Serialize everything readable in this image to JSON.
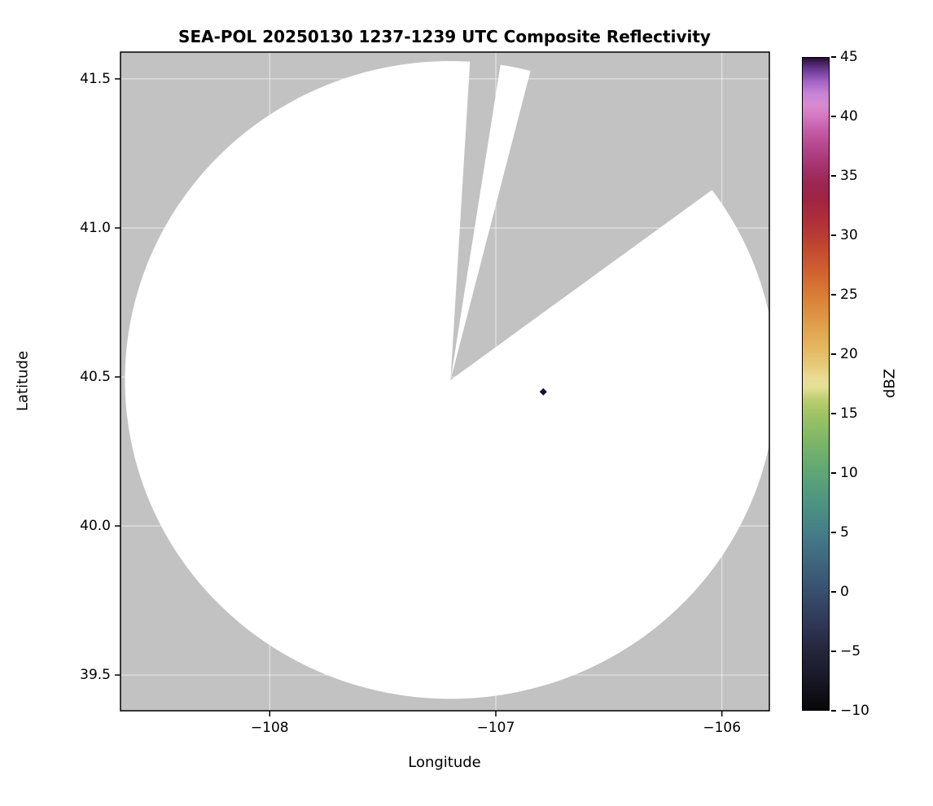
{
  "chart_data": {
    "type": "heatmap",
    "title": "SEA-POL 20250130 1237-1239 UTC Composite Reflectivity",
    "xlabel": "Longitude",
    "ylabel": "Latitude",
    "xlim": [
      -108.66,
      -105.79
    ],
    "ylim": [
      39.38,
      41.59
    ],
    "grid": true,
    "grid_color": "#ffffff",
    "background_color": "#c2c2c2",
    "frame_color": "#000000",
    "xticks": {
      "values": [
        -108,
        -107,
        -106
      ],
      "labels": [
        "−108",
        "−107",
        "−106"
      ]
    },
    "yticks": {
      "values": [
        41.5,
        41.0,
        40.5,
        40.0,
        39.5
      ],
      "labels": [
        "41.5",
        "41.0",
        "40.5",
        "40.0",
        "39.5"
      ]
    },
    "coverage": {
      "description": "white circular radar scan coverage (echo-free) with gray blocked sectors",
      "center_lon": -107.2,
      "center_lat": 40.49,
      "radius_deg": {
        "lon": 1.44,
        "lat": 1.07
      },
      "fill": "#ffffff",
      "blocked_sectors_azimuth_deg": [
        [
          3.5,
          9.0
        ],
        [
          14.5,
          54.0
        ]
      ]
    },
    "echoes": [
      {
        "lon": -106.79,
        "lat": 40.45,
        "dbz": 45
      }
    ],
    "echo_marker_color": "#1a0d2e",
    "colorbar": {
      "label": "dBZ",
      "vmin": -10,
      "vmax": 45,
      "tick_values": [
        45,
        40,
        35,
        30,
        25,
        20,
        15,
        10,
        5,
        0,
        -5,
        -10
      ],
      "tick_labels": [
        "45",
        "40",
        "35",
        "30",
        "25",
        "20",
        "15",
        "10",
        "5",
        "0",
        "−5",
        "−10"
      ],
      "stops": [
        {
          "v": -10,
          "c": "#070708"
        },
        {
          "v": -8.5,
          "c": "#121019"
        },
        {
          "v": -7,
          "c": "#1b1a2b"
        },
        {
          "v": -5,
          "c": "#25263c"
        },
        {
          "v": -3,
          "c": "#2e3552"
        },
        {
          "v": -1,
          "c": "#354666"
        },
        {
          "v": 1,
          "c": "#3b5876"
        },
        {
          "v": 3,
          "c": "#406a80"
        },
        {
          "v": 5,
          "c": "#457d87"
        },
        {
          "v": 7,
          "c": "#4b9084"
        },
        {
          "v": 9,
          "c": "#569f7b"
        },
        {
          "v": 11,
          "c": "#68ac6f"
        },
        {
          "v": 13,
          "c": "#81b865"
        },
        {
          "v": 15,
          "c": "#9fc464"
        },
        {
          "v": 16.2,
          "c": "#bdce70"
        },
        {
          "v": 17.2,
          "c": "#e4e096"
        },
        {
          "v": 18,
          "c": "#e9dc95"
        },
        {
          "v": 19,
          "c": "#e6cb79"
        },
        {
          "v": 21,
          "c": "#e3b159"
        },
        {
          "v": 23,
          "c": "#df9845"
        },
        {
          "v": 25,
          "c": "#d97d36"
        },
        {
          "v": 27,
          "c": "#d0612e"
        },
        {
          "v": 29,
          "c": "#c24731"
        },
        {
          "v": 31,
          "c": "#b13138"
        },
        {
          "v": 33,
          "c": "#a02442"
        },
        {
          "v": 34.5,
          "c": "#9c2753"
        },
        {
          "v": 36,
          "c": "#a53470"
        },
        {
          "v": 37.5,
          "c": "#b4468c"
        },
        {
          "v": 39,
          "c": "#c75eaa"
        },
        {
          "v": 40,
          "c": "#d476c0"
        },
        {
          "v": 41,
          "c": "#d78bd0"
        },
        {
          "v": 42,
          "c": "#c883d6"
        },
        {
          "v": 43,
          "c": "#a263c4"
        },
        {
          "v": 44,
          "c": "#6b3a94"
        },
        {
          "v": 44.6,
          "c": "#47205c"
        },
        {
          "v": 45,
          "c": "#230c39"
        }
      ]
    }
  }
}
